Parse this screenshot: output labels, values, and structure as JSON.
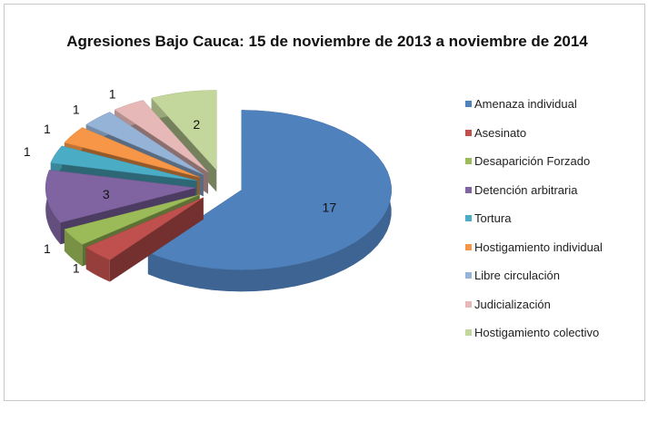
{
  "chart_data": {
    "type": "pie",
    "title": "Agresiones Bajo Cauca: 15 de noviembre de 2013 a noviembre de 2014",
    "categories": [
      "Amenaza individual",
      "Asesinato",
      "Desaparición Forzado",
      "Detención arbitraria",
      "Tortura",
      "Hostigamiento individual",
      "Libre circulación",
      "Judicialización",
      "Hostigamiento colectivo"
    ],
    "values": [
      17,
      1,
      1,
      3,
      1,
      1,
      1,
      1,
      2
    ],
    "colors": [
      "#4f81bd",
      "#c0504d",
      "#9bbb59",
      "#8064a2",
      "#4bacc6",
      "#f79646",
      "#95b3d7",
      "#e6b9b8",
      "#c3d69b"
    ],
    "style": "3d-exploded",
    "legend": "right",
    "data_labels": true
  }
}
